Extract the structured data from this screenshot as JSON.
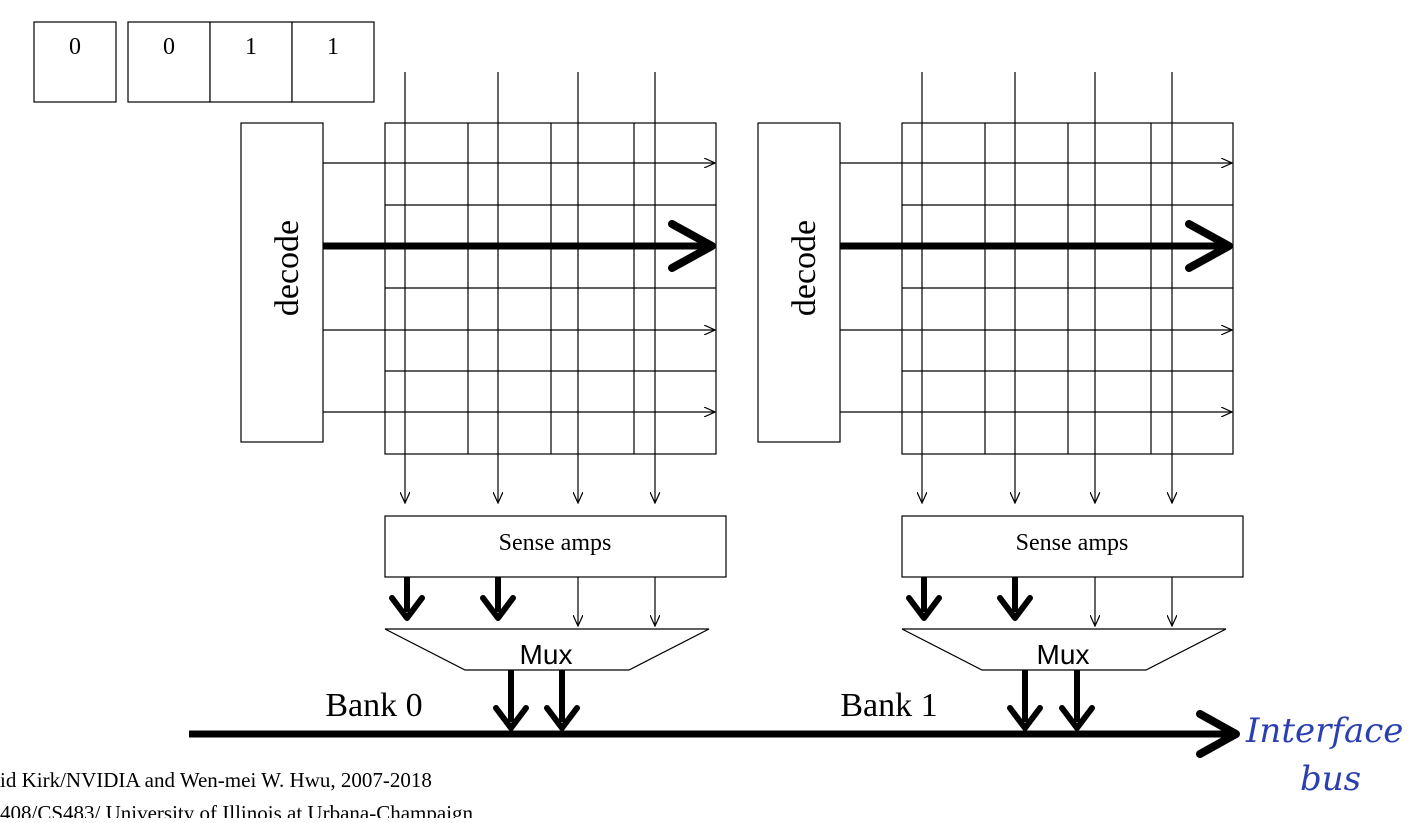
{
  "address_bits": [
    "0",
    "0",
    "1",
    "1"
  ],
  "banks": [
    {
      "decode_label": "decode",
      "sense_label": "Sense amps",
      "mux_label": "Mux",
      "bank_label": "Bank 0"
    },
    {
      "decode_label": "decode",
      "sense_label": "Sense amps",
      "mux_label": "Mux",
      "bank_label": "Bank 1"
    }
  ],
  "annotation": {
    "line1": "Interface",
    "line2": "bus"
  },
  "footer": {
    "line1": "id Kirk/NVIDIA and Wen-mei W. Hwu, 2007-2018",
    "line2": "408/CS483/ University of Illinois at Urbana-Champaign"
  },
  "colors": {
    "ink": "#000000",
    "annotation": "#2a3fb0"
  }
}
